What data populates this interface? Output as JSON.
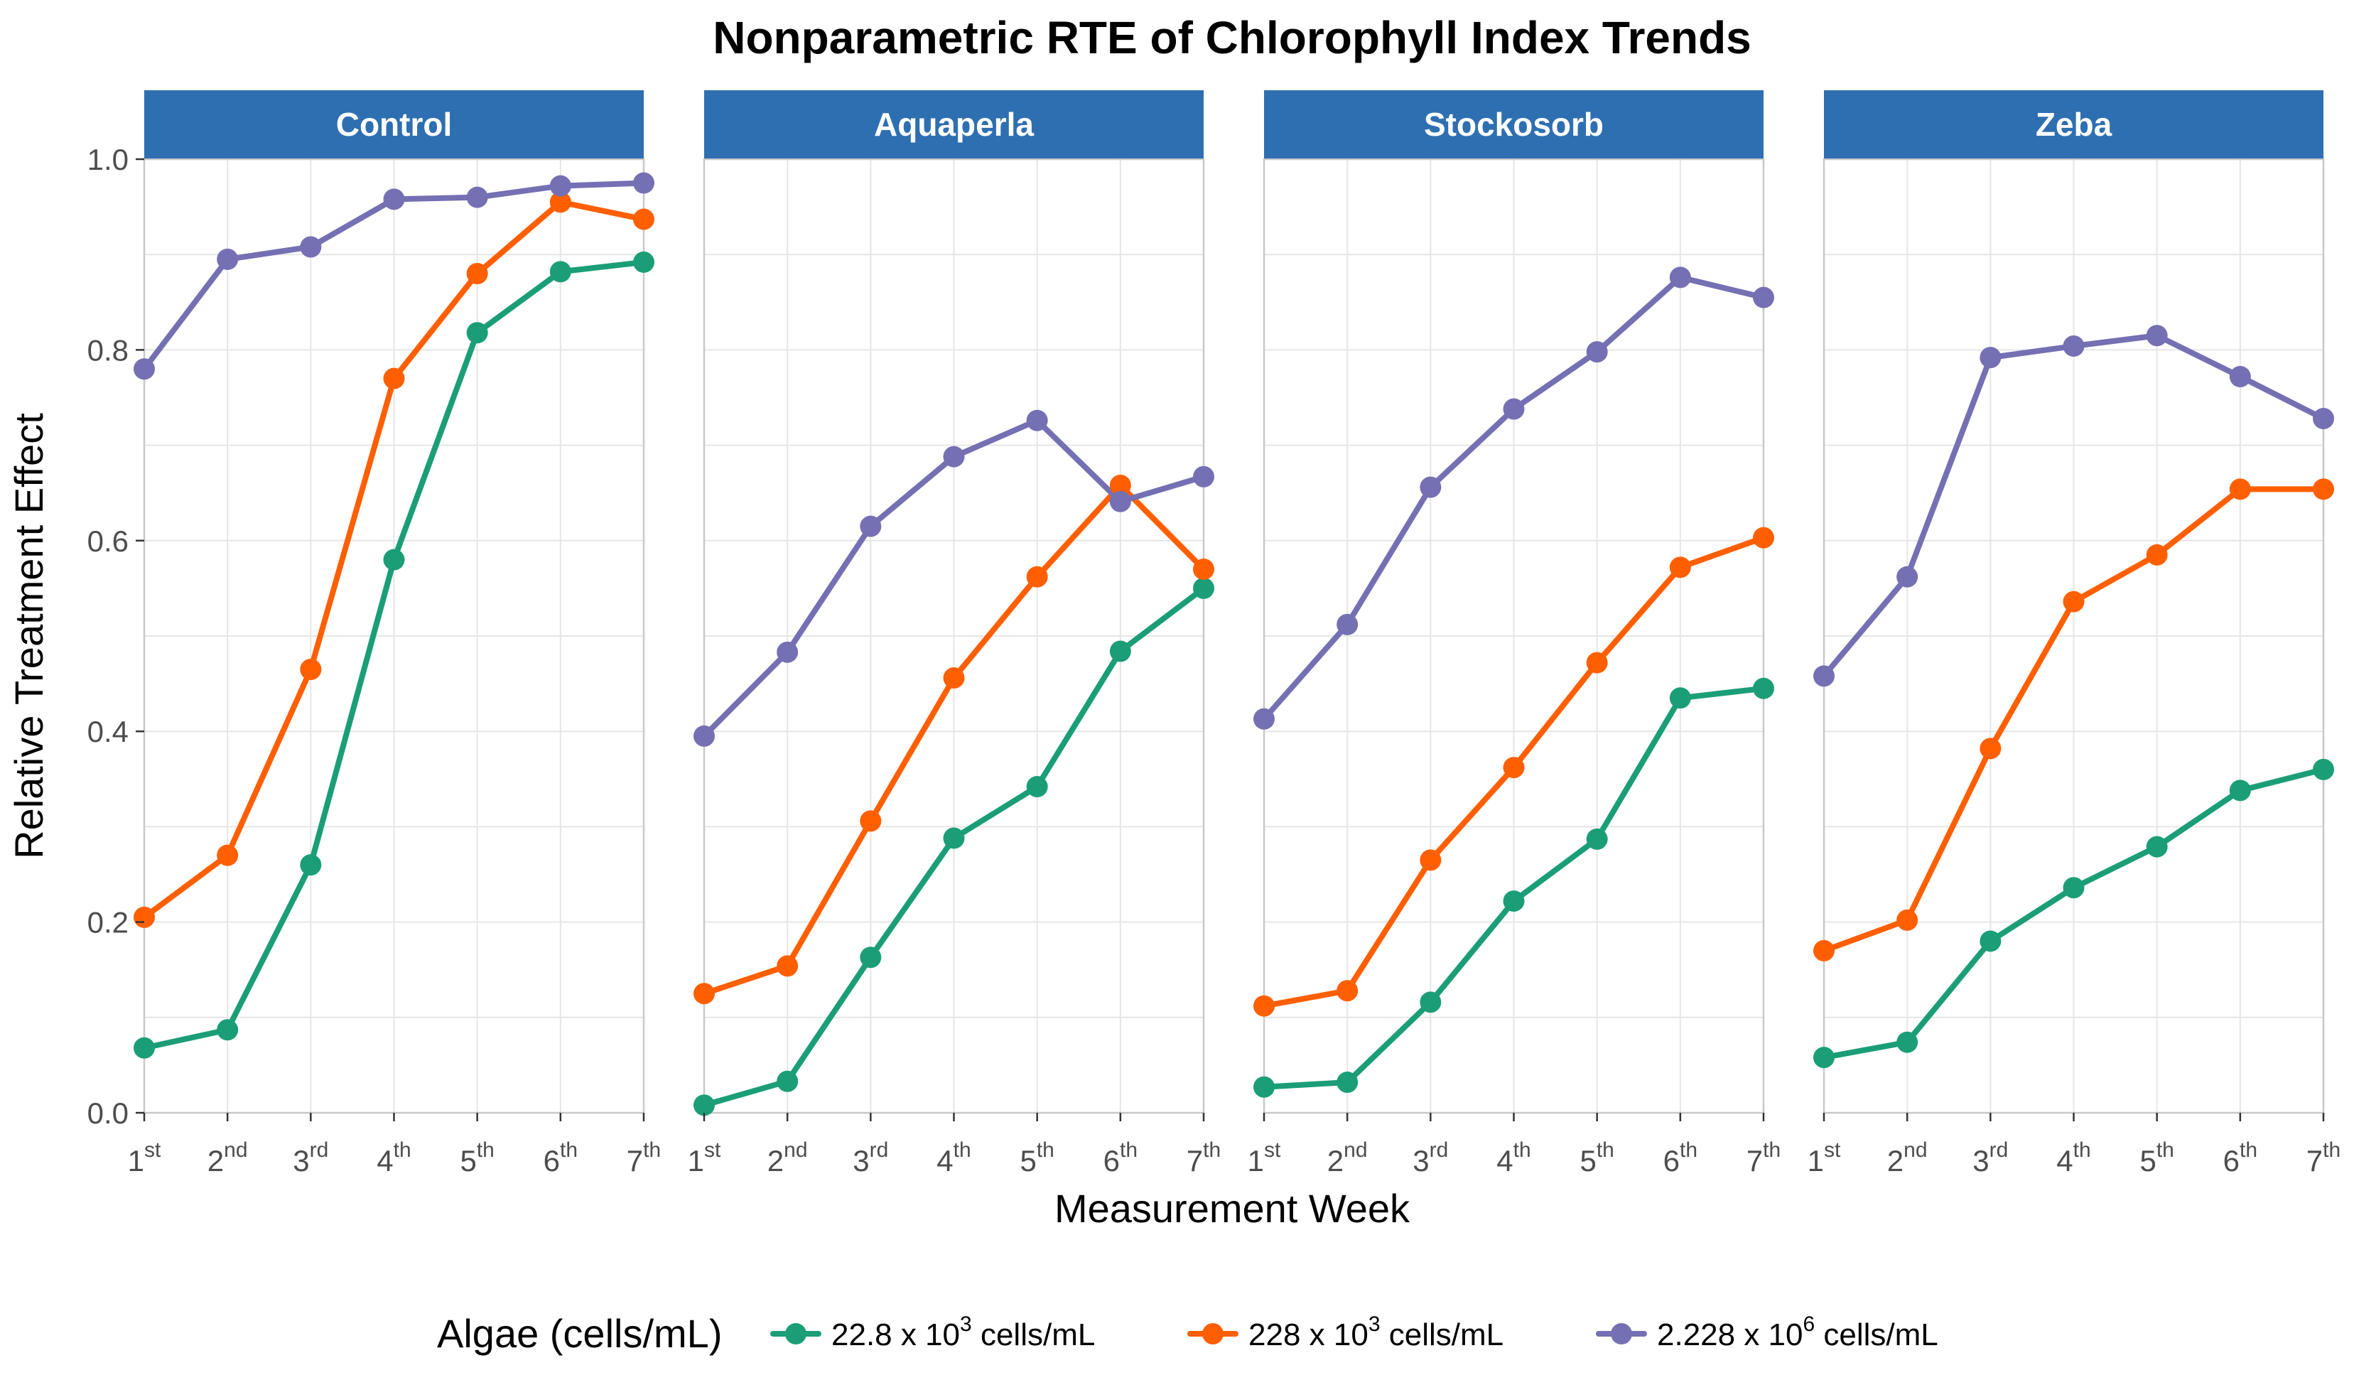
{
  "chart_data": {
    "type": "line",
    "title": "Nonparametric RTE of Chlorophyll Index Trends",
    "xlabel": "Measurement Week",
    "ylabel": "Relative Treatment Effect",
    "ylim": [
      0,
      1.0
    ],
    "yticks": [
      "0.0",
      "0.2",
      "0.4",
      "0.6",
      "0.8",
      "1.0"
    ],
    "categories": [
      {
        "num": "1",
        "suffix": "st"
      },
      {
        "num": "2",
        "suffix": "nd"
      },
      {
        "num": "3",
        "suffix": "rd"
      },
      {
        "num": "4",
        "suffix": "th"
      },
      {
        "num": "5",
        "suffix": "th"
      },
      {
        "num": "6",
        "suffix": "th"
      },
      {
        "num": "7",
        "suffix": "th"
      }
    ],
    "legend": {
      "title": "Algae (cells/mL)",
      "position": "bottom",
      "entries": [
        {
          "prefix": "22.8 x 10",
          "exp": "3",
          "unit": " cells/mL",
          "color": "#1b9e77"
        },
        {
          "prefix": "228 x 10",
          "exp": "3",
          "unit": " cells/mL",
          "color": "#ff5f00"
        },
        {
          "prefix": "2.228 x 10",
          "exp": "6",
          "unit": " cells/mL",
          "color": "#7570b3"
        }
      ]
    },
    "panels": [
      {
        "name": "Control",
        "series": [
          {
            "name": "22.8 x 10^3 cells/mL",
            "values": [
              0.068,
              0.087,
              0.26,
              0.58,
              0.818,
              0.882,
              0.892
            ]
          },
          {
            "name": "228 x 10^3 cells/mL",
            "values": [
              0.205,
              0.27,
              0.465,
              0.77,
              0.88,
              0.955,
              0.937
            ]
          },
          {
            "name": "2.228 x 10^6 cells/mL",
            "values": [
              0.78,
              0.895,
              0.908,
              0.958,
              0.96,
              0.972,
              0.975
            ]
          }
        ]
      },
      {
        "name": "Aquaperla",
        "series": [
          {
            "name": "22.8 x 10^3 cells/mL",
            "values": [
              0.008,
              0.033,
              0.163,
              0.288,
              0.342,
              0.484,
              0.55
            ]
          },
          {
            "name": "228 x 10^3 cells/mL",
            "values": [
              0.125,
              0.154,
              0.306,
              0.456,
              0.562,
              0.658,
              0.57
            ]
          },
          {
            "name": "2.228 x 10^6 cells/mL",
            "values": [
              0.395,
              0.483,
              0.615,
              0.688,
              0.726,
              0.641,
              0.667
            ]
          }
        ]
      },
      {
        "name": "Stockosorb",
        "series": [
          {
            "name": "22.8 x 10^3 cells/mL",
            "values": [
              0.027,
              0.032,
              0.116,
              0.222,
              0.287,
              0.435,
              0.445
            ]
          },
          {
            "name": "228 x 10^3 cells/mL",
            "values": [
              0.112,
              0.128,
              0.265,
              0.362,
              0.472,
              0.572,
              0.603
            ]
          },
          {
            "name": "2.228 x 10^6 cells/mL",
            "values": [
              0.413,
              0.512,
              0.656,
              0.738,
              0.798,
              0.876,
              0.855
            ]
          }
        ]
      },
      {
        "name": "Zeba",
        "series": [
          {
            "name": "22.8 x 10^3 cells/mL",
            "values": [
              0.058,
              0.074,
              0.18,
              0.236,
              0.279,
              0.338,
              0.36
            ]
          },
          {
            "name": "228 x 10^3 cells/mL",
            "values": [
              0.17,
              0.202,
              0.382,
              0.536,
              0.585,
              0.654,
              0.654
            ]
          },
          {
            "name": "2.228 x 10^6 cells/mL",
            "values": [
              0.458,
              0.562,
              0.792,
              0.804,
              0.815,
              0.772,
              0.728
            ]
          }
        ]
      }
    ]
  }
}
